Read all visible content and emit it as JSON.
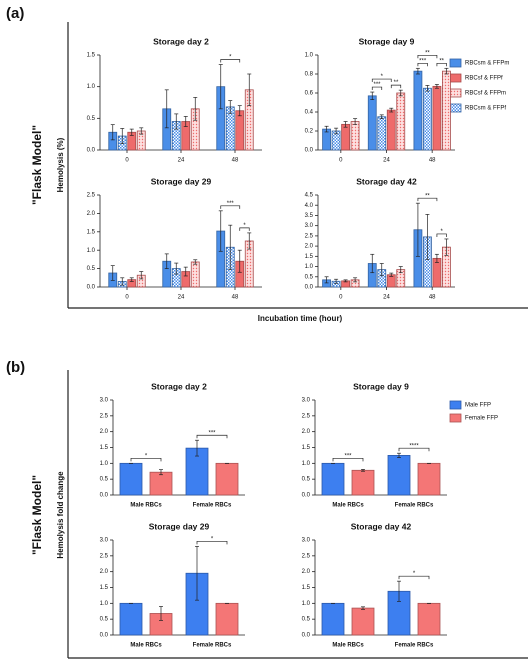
{
  "panels": [
    {
      "label": "(a)",
      "side_label": "\"Flask Model\"",
      "y_label": "Hemolysis (%)",
      "x_label": "Incubation time (hour)",
      "legend": [
        {
          "name": "RBCsm & FFPm",
          "color": "#4a8ee8",
          "pattern": "solid"
        },
        {
          "name": "RBCsf & FFPf",
          "color": "#ee6b6b",
          "pattern": "solid"
        },
        {
          "name": "RBCsf & FFPm",
          "color": "#ee6b6b",
          "pattern": "dots"
        },
        {
          "name": "RBCsm & FFPf",
          "color": "#4a8ee8",
          "pattern": "checker"
        }
      ]
    },
    {
      "label": "(b)",
      "side_label": "\"Flask Model\"",
      "y_label": "Hemolysis fold change",
      "legend": [
        {
          "name": "Male FFP",
          "color": "#3d7ff0",
          "pattern": "solid"
        },
        {
          "name": "Female FFP",
          "color": "#f47676",
          "pattern": "solid"
        }
      ]
    }
  ],
  "chart_data": [
    {
      "type": "bar",
      "title": "Storage day 2",
      "categories": [
        "0",
        "24",
        "48"
      ],
      "ylim": [
        0,
        1.5
      ],
      "yticks": [
        {
          "value": 0,
          "label": "0.0"
        },
        0.5,
        {
          "value": 1,
          "label": "1.0"
        },
        1.5
      ],
      "series": [
        {
          "values": [
            0.28,
            0.65,
            1.0
          ],
          "errors": [
            0.12,
            0.3,
            0.35
          ]
        },
        {
          "values": [
            0.28,
            0.45,
            0.62
          ],
          "errors": [
            0.05,
            0.08,
            0.08
          ]
        },
        {
          "values": [
            0.3,
            0.65,
            0.95
          ],
          "errors": [
            0.05,
            0.18,
            0.25
          ]
        },
        {
          "values": [
            0.22,
            0.45,
            0.68
          ],
          "errors": [
            0.12,
            0.12,
            0.1
          ]
        }
      ],
      "significance": [
        {
          "label": "*",
          "category": 2,
          "series": [
            0,
            1
          ]
        }
      ]
    },
    {
      "type": "bar",
      "title": "Storage day 9",
      "categories": [
        "0",
        "24",
        "48"
      ],
      "ylim": [
        0,
        1
      ],
      "yticks": [
        {
          "value": 0,
          "label": "0.0"
        },
        0.2,
        0.4,
        0.6,
        0.8,
        {
          "value": 1,
          "label": "1.0"
        }
      ],
      "series": [
        {
          "values": [
            0.22,
            0.57,
            0.83
          ],
          "errors": [
            0.03,
            0.04,
            0.03
          ]
        },
        {
          "values": [
            0.27,
            0.42,
            0.67
          ],
          "errors": [
            0.03,
            0.02,
            0.02
          ]
        },
        {
          "values": [
            0.3,
            0.6,
            0.83
          ],
          "errors": [
            0.03,
            0.03,
            0.03
          ]
        },
        {
          "values": [
            0.2,
            0.35,
            0.65
          ],
          "errors": [
            0.03,
            0.02,
            0.03
          ]
        }
      ],
      "significance": [
        {
          "label": "***",
          "category": 1,
          "series": [
            0,
            3
          ]
        },
        {
          "label": "**",
          "category": 1,
          "series": [
            1,
            2
          ]
        },
        {
          "label": "*",
          "category": 1,
          "series": [
            0,
            1
          ]
        },
        {
          "label": "***",
          "category": 2,
          "series": [
            0,
            3
          ]
        },
        {
          "label": "**",
          "category": 2,
          "series": [
            1,
            2
          ]
        },
        {
          "label": "**",
          "category": 2,
          "series": [
            0,
            1
          ]
        }
      ]
    },
    {
      "type": "bar",
      "title": "Storage day 29",
      "categories": [
        "0",
        "24",
        "48"
      ],
      "ylim": [
        0,
        2.5
      ],
      "yticks": [
        {
          "value": 0,
          "label": "0.0"
        },
        0.5,
        {
          "value": 1,
          "label": "1.0"
        },
        1.5,
        {
          "value": 2,
          "label": "2.0"
        },
        2.5
      ],
      "series": [
        {
          "values": [
            0.38,
            0.7,
            1.52
          ],
          "errors": [
            0.2,
            0.2,
            0.55
          ]
        },
        {
          "values": [
            0.2,
            0.42,
            0.7
          ],
          "errors": [
            0.05,
            0.12,
            0.3
          ]
        },
        {
          "values": [
            0.32,
            0.68,
            1.25
          ],
          "errors": [
            0.1,
            0.06,
            0.22
          ]
        },
        {
          "values": [
            0.15,
            0.5,
            1.08
          ],
          "errors": [
            0.1,
            0.15,
            0.6
          ]
        }
      ],
      "significance": [
        {
          "label": "*",
          "category": 2,
          "series": [
            1,
            2
          ]
        },
        {
          "label": "***",
          "category": 2,
          "series": [
            0,
            1
          ]
        }
      ]
    },
    {
      "type": "bar",
      "title": "Storage day 42",
      "categories": [
        "0",
        "24",
        "48"
      ],
      "ylim": [
        0,
        4.5
      ],
      "yticks": [
        {
          "value": 0,
          "label": "0.0"
        },
        0.5,
        {
          "value": 1,
          "label": "1.0"
        },
        1.5,
        {
          "value": 2,
          "label": "2.0"
        },
        2.5,
        {
          "value": 3,
          "label": "3.0"
        },
        3.5,
        {
          "value": 4,
          "label": "4.0"
        },
        4.5
      ],
      "series": [
        {
          "values": [
            0.35,
            1.15,
            2.8
          ],
          "errors": [
            0.15,
            0.45,
            1.3
          ]
        },
        {
          "values": [
            0.3,
            0.6,
            1.4
          ],
          "errors": [
            0.05,
            0.08,
            0.2
          ]
        },
        {
          "values": [
            0.35,
            0.85,
            1.95
          ],
          "errors": [
            0.1,
            0.15,
            0.4
          ]
        },
        {
          "values": [
            0.28,
            0.85,
            2.45
          ],
          "errors": [
            0.1,
            0.3,
            1.1
          ]
        }
      ],
      "significance": [
        {
          "label": "*",
          "category": 2,
          "series": [
            1,
            2
          ]
        },
        {
          "label": "**",
          "category": 2,
          "series": [
            0,
            1
          ]
        }
      ]
    },
    {
      "type": "bar",
      "title": "Storage day 2",
      "categories": [
        "Male RBCs",
        "Female RBCs"
      ],
      "ylim": [
        0,
        3
      ],
      "yticks": [
        {
          "value": 0,
          "label": "0.0"
        },
        0.5,
        {
          "value": 1,
          "label": "1.0"
        },
        1.5,
        {
          "value": 2,
          "label": "2.0"
        },
        2.5,
        {
          "value": 3,
          "label": "3.0"
        }
      ],
      "series": [
        {
          "values": [
            1.0,
            1.48
          ],
          "errors": [
            0,
            0.25
          ]
        },
        {
          "values": [
            0.72,
            1.0
          ],
          "errors": [
            0.08,
            0
          ]
        }
      ],
      "significance": [
        {
          "label": "*",
          "category": 0,
          "series": [
            0,
            1
          ]
        },
        {
          "label": "***",
          "category": 1,
          "series": [
            0,
            1
          ]
        }
      ]
    },
    {
      "type": "bar",
      "title": "Storage day 9",
      "categories": [
        "Male RBCs",
        "Female RBCs"
      ],
      "ylim": [
        0,
        3
      ],
      "yticks": [
        {
          "value": 0,
          "label": "0.0"
        },
        0.5,
        {
          "value": 1,
          "label": "1.0"
        },
        1.5,
        {
          "value": 2,
          "label": "2.0"
        },
        2.5,
        {
          "value": 3,
          "label": "3.0"
        }
      ],
      "series": [
        {
          "values": [
            1.0,
            1.25
          ],
          "errors": [
            0,
            0.07
          ]
        },
        {
          "values": [
            0.78,
            1.0
          ],
          "errors": [
            0.03,
            0
          ]
        }
      ],
      "significance": [
        {
          "label": "***",
          "category": 0,
          "series": [
            0,
            1
          ]
        },
        {
          "label": "****",
          "category": 1,
          "series": [
            0,
            1
          ]
        }
      ]
    },
    {
      "type": "bar",
      "title": "Storage day 29",
      "categories": [
        "Male RBCs",
        "Female RBCs"
      ],
      "ylim": [
        0,
        3
      ],
      "yticks": [
        {
          "value": 0,
          "label": "0.0"
        },
        0.5,
        {
          "value": 1,
          "label": "1.0"
        },
        1.5,
        {
          "value": 2,
          "label": "2.0"
        },
        2.5,
        {
          "value": 3,
          "label": "3.0"
        }
      ],
      "series": [
        {
          "values": [
            1.0,
            1.95
          ],
          "errors": [
            0,
            0.85
          ]
        },
        {
          "values": [
            0.68,
            1.0
          ],
          "errors": [
            0.22,
            0
          ]
        }
      ],
      "significance": [
        {
          "label": "*",
          "category": 1,
          "series": [
            0,
            1
          ]
        }
      ]
    },
    {
      "type": "bar",
      "title": "Storage day 42",
      "categories": [
        "Male RBCs",
        "Female RBCs"
      ],
      "ylim": [
        0,
        3
      ],
      "yticks": [
        {
          "value": 0,
          "label": "0.0"
        },
        0.5,
        {
          "value": 1,
          "label": "1.0"
        },
        1.5,
        {
          "value": 2,
          "label": "2.0"
        },
        2.5,
        {
          "value": 3,
          "label": "3.0"
        }
      ],
      "series": [
        {
          "values": [
            1.0,
            1.38
          ],
          "errors": [
            0,
            0.32
          ]
        },
        {
          "values": [
            0.85,
            1.0
          ],
          "errors": [
            0.04,
            0
          ]
        }
      ],
      "significance": [
        {
          "label": "*",
          "category": 1,
          "series": [
            0,
            1
          ]
        }
      ]
    }
  ]
}
